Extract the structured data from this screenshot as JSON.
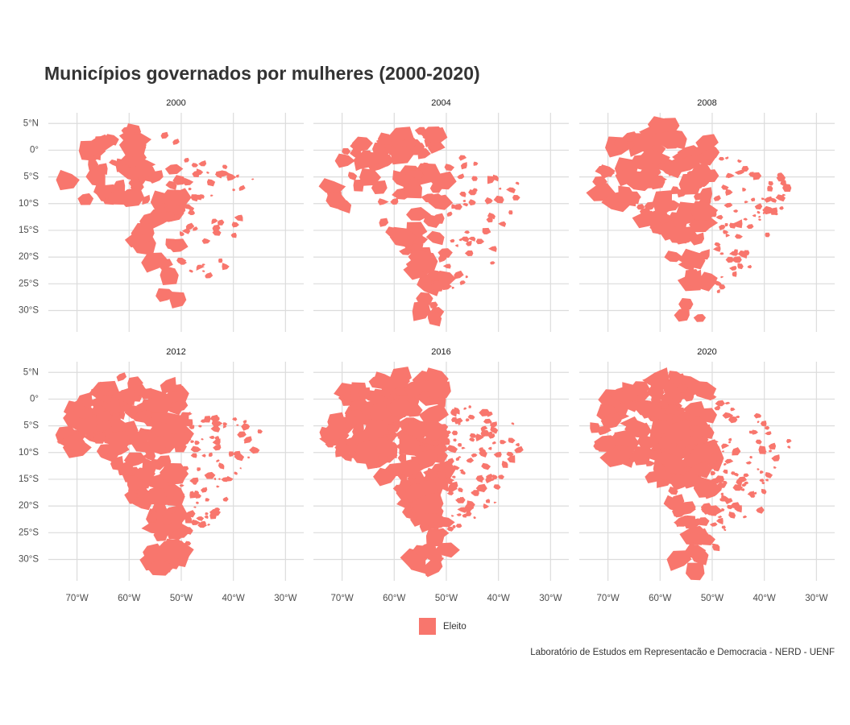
{
  "chart_data": {
    "type": "map",
    "title": "Municípios governados por mulheres (2000-2020)",
    "caption": "Laboratório de Estudos em Representacão e Democracia - NERD - UENF",
    "facets": [
      "2000",
      "2004",
      "2008",
      "2012",
      "2016",
      "2020"
    ],
    "legend": {
      "label": "Eleito",
      "color": "#f8766d"
    },
    "xlim": [
      -75.5,
      -26.5
    ],
    "ylim": [
      -34,
      7
    ],
    "xticks": [
      {
        "value": -70,
        "label": "70°W"
      },
      {
        "value": -60,
        "label": "60°W"
      },
      {
        "value": -50,
        "label": "50°W"
      },
      {
        "value": -40,
        "label": "40°W"
      },
      {
        "value": -30,
        "label": "30°W"
      }
    ],
    "yticks": [
      {
        "value": 5,
        "label": "5°N"
      },
      {
        "value": 0,
        "label": "0°"
      },
      {
        "value": -5,
        "label": "5°S"
      },
      {
        "value": -10,
        "label": "10°S"
      },
      {
        "value": -15,
        "label": "15°S"
      },
      {
        "value": -20,
        "label": "20°S"
      },
      {
        "value": -25,
        "label": "25°S"
      },
      {
        "value": -30,
        "label": "30°S"
      }
    ],
    "grid": true
  }
}
